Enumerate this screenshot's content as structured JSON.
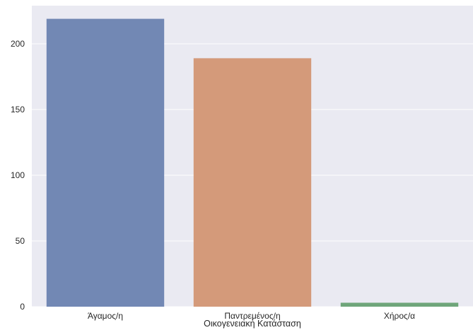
{
  "chart_data": {
    "type": "bar",
    "title": "",
    "xlabel": "Οικογενειακή Κατάσταση",
    "ylabel": "",
    "categories": [
      "Άγαμος/η",
      "Παντρεμένος/η",
      "Χήρος/α"
    ],
    "values": [
      219,
      189,
      3
    ],
    "colors": [
      "#7288b4",
      "#d49a7a",
      "#6fa67a"
    ],
    "ylim": [
      0,
      229
    ],
    "yticks": [
      0,
      50,
      100,
      150,
      200
    ],
    "grid": true,
    "background": "#eaeaf2",
    "gridColor": "#ffffff"
  }
}
